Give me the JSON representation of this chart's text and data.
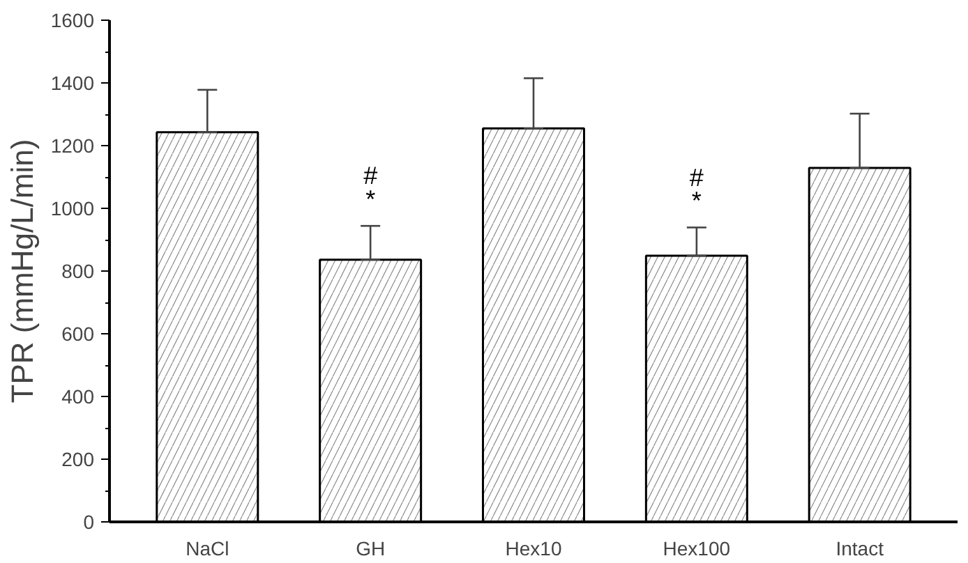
{
  "chart_data": {
    "type": "bar",
    "ylabel": "TPR (mmHg/L/min)",
    "categories": [
      "NaCl",
      "GH",
      "Hex10",
      "Hex100",
      "Intact"
    ],
    "values": [
      1243,
      836,
      1255,
      849,
      1129
    ],
    "errors": [
      [
        1243,
        1378
      ],
      [
        836,
        944
      ],
      [
        1255,
        1415
      ],
      [
        849,
        939
      ],
      [
        1129,
        1302
      ]
    ],
    "color": "#ffffff",
    "ylim": [
      0,
      1600
    ],
    "yticks": [
      0,
      200,
      400,
      600,
      800,
      1000,
      1200,
      1400,
      1600
    ],
    "grid": false,
    "annotations": [
      "*",
      "#",
      "*",
      "#"
    ]
  }
}
